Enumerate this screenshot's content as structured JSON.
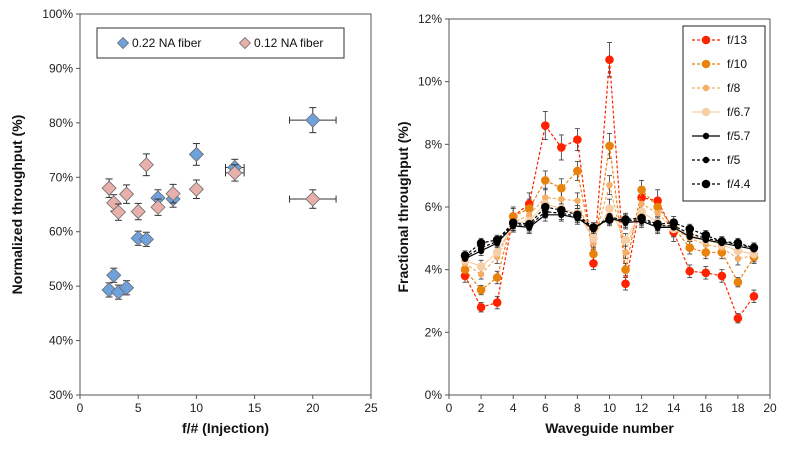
{
  "chart_data": [
    {
      "type": "scatter",
      "xlabel": "f/#  (Injection)",
      "ylabel": "Normalized throughput (%)",
      "xlim": [
        0,
        25
      ],
      "ylim": [
        30,
        100
      ],
      "x_ticks": [
        0,
        5,
        10,
        15,
        20,
        25
      ],
      "y_ticks": [
        30,
        40,
        50,
        60,
        70,
        80,
        90,
        100
      ],
      "y_tick_labels": [
        "30%",
        "40%",
        "50%",
        "60%",
        "70%",
        "80%",
        "90%",
        "100%"
      ],
      "legend_position": "top",
      "series": [
        {
          "name": "0.22 NA fiber",
          "color": "#6fa1dc",
          "points": [
            {
              "x": 2.5,
              "y": 49.3,
              "yerr": 1.3
            },
            {
              "x": 2.9,
              "y": 52.0,
              "yerr": 1.3
            },
            {
              "x": 3.3,
              "y": 48.9,
              "yerr": 1.3
            },
            {
              "x": 4.0,
              "y": 49.7,
              "yerr": 1.3
            },
            {
              "x": 5.0,
              "y": 58.8,
              "yerr": 1.3
            },
            {
              "x": 5.7,
              "y": 58.6,
              "yerr": 1.3
            },
            {
              "x": 6.7,
              "y": 66.2,
              "yerr": 1.5
            },
            {
              "x": 8.0,
              "y": 66.0,
              "yerr": 1.5
            },
            {
              "x": 10.0,
              "y": 74.2,
              "yerr": 2.0,
              "xerr": 0.2
            },
            {
              "x": 13.3,
              "y": 71.8,
              "yerr": 1.5,
              "xerr": 0.8
            },
            {
              "x": 20.0,
              "y": 80.5,
              "yerr": 2.3,
              "xerr": 2.0
            }
          ]
        },
        {
          "name": "0.12 NA fiber",
          "color": "#e8b0ab",
          "points": [
            {
              "x": 2.5,
              "y": 68.0,
              "yerr": 1.7
            },
            {
              "x": 2.9,
              "y": 65.3,
              "yerr": 1.5
            },
            {
              "x": 3.3,
              "y": 63.6,
              "yerr": 1.5
            },
            {
              "x": 4.0,
              "y": 66.9,
              "yerr": 1.7
            },
            {
              "x": 5.0,
              "y": 63.7,
              "yerr": 1.5
            },
            {
              "x": 5.7,
              "y": 72.3,
              "yerr": 2.0
            },
            {
              "x": 6.7,
              "y": 64.5,
              "yerr": 1.5
            },
            {
              "x": 8.0,
              "y": 67.0,
              "yerr": 1.7
            },
            {
              "x": 10.0,
              "y": 67.8,
              "yerr": 1.7
            },
            {
              "x": 13.3,
              "y": 70.8,
              "yerr": 1.5,
              "xerr": 0.8
            },
            {
              "x": 20.0,
              "y": 66.0,
              "yerr": 1.7,
              "xerr": 2.0
            }
          ]
        }
      ]
    },
    {
      "type": "line",
      "xlabel": "Waveguide number",
      "ylabel": "Fractional throughput (%)",
      "xlim": [
        0,
        20
      ],
      "ylim": [
        0,
        12
      ],
      "x_ticks": [
        0,
        2,
        4,
        6,
        8,
        10,
        12,
        14,
        16,
        18,
        20
      ],
      "y_ticks": [
        0,
        2,
        4,
        6,
        8,
        10,
        12
      ],
      "y_tick_labels": [
        "0%",
        "2%",
        "4%",
        "6%",
        "8%",
        "10%",
        "12%"
      ],
      "legend_position": "top-right",
      "x": [
        1,
        2,
        3,
        4,
        5,
        6,
        7,
        8,
        9,
        10,
        11,
        12,
        13,
        14,
        15,
        16,
        17,
        18,
        19
      ],
      "series": [
        {
          "name": "f/13",
          "color": "#ff2200",
          "dashed": true,
          "marker_size": "large",
          "values": [
            3.8,
            2.8,
            2.95,
            5.7,
            6.1,
            8.6,
            7.9,
            8.15,
            4.2,
            10.7,
            3.55,
            6.3,
            6.2,
            5.2,
            3.95,
            3.9,
            3.8,
            2.45,
            3.15
          ],
          "yerr": [
            0.2,
            0.15,
            0.2,
            0.3,
            0.35,
            0.45,
            0.4,
            0.35,
            0.2,
            0.55,
            0.2,
            0.35,
            0.35,
            0.3,
            0.2,
            0.2,
            0.2,
            0.15,
            0.2
          ]
        },
        {
          "name": "f/10",
          "color": "#e8820c",
          "dashed": true,
          "marker_size": "large",
          "values": [
            4.0,
            3.35,
            3.75,
            5.7,
            5.95,
            6.85,
            6.6,
            7.15,
            4.5,
            7.95,
            4.0,
            6.55,
            6.0,
            5.35,
            4.7,
            4.55,
            4.55,
            3.6,
            4.4
          ],
          "yerr": [
            0.2,
            0.15,
            0.2,
            0.25,
            0.3,
            0.3,
            0.3,
            0.3,
            0.2,
            0.4,
            0.2,
            0.3,
            0.3,
            0.25,
            0.2,
            0.2,
            0.2,
            0.15,
            0.2
          ]
        },
        {
          "name": "f/8",
          "color": "#f5ae66",
          "dashed": true,
          "marker_size": "small",
          "values": [
            4.2,
            3.85,
            4.4,
            5.5,
            5.75,
            6.3,
            6.25,
            6.2,
            4.85,
            6.7,
            4.55,
            6.1,
            5.8,
            5.3,
            5.0,
            4.8,
            4.7,
            4.35,
            4.45
          ],
          "yerr": [
            0.2,
            0.15,
            0.2,
            0.25,
            0.25,
            0.3,
            0.3,
            0.25,
            0.2,
            0.3,
            0.2,
            0.3,
            0.25,
            0.25,
            0.2,
            0.2,
            0.2,
            0.2,
            0.2
          ]
        },
        {
          "name": "f/6.7",
          "color": "#f6cfa8",
          "dashed": false,
          "marker_size": "large",
          "values": [
            4.3,
            4.1,
            4.55,
            5.45,
            5.55,
            6.1,
            5.95,
            5.8,
            5.0,
            5.95,
            4.95,
            5.85,
            5.5,
            5.3,
            5.1,
            4.95,
            4.8,
            4.6,
            4.5
          ],
          "yerr": [
            0.2,
            0.2,
            0.2,
            0.25,
            0.25,
            0.25,
            0.25,
            0.25,
            0.2,
            0.3,
            0.2,
            0.25,
            0.25,
            0.25,
            0.2,
            0.2,
            0.2,
            0.2,
            0.2
          ]
        },
        {
          "name": "f/5.7",
          "color": "#000000",
          "dashed": false,
          "marker_size": "small",
          "values": [
            4.35,
            4.6,
            4.85,
            5.4,
            5.35,
            5.75,
            5.75,
            5.65,
            5.3,
            5.65,
            5.5,
            5.55,
            5.35,
            5.35,
            5.05,
            4.95,
            4.85,
            4.75,
            4.65
          ],
          "yerr": [
            0.15,
            0.15,
            0.15,
            0.2,
            0.2,
            0.2,
            0.2,
            0.2,
            0.15,
            0.2,
            0.2,
            0.2,
            0.2,
            0.2,
            0.15,
            0.15,
            0.15,
            0.15,
            0.15
          ]
        },
        {
          "name": "f/5",
          "color": "#000000",
          "dashed": true,
          "marker_size": "small",
          "values": [
            4.4,
            4.7,
            4.9,
            5.45,
            5.4,
            5.85,
            5.8,
            5.7,
            5.3,
            5.7,
            5.55,
            5.6,
            5.4,
            5.4,
            5.15,
            5.0,
            4.9,
            4.8,
            4.7
          ],
          "yerr": [
            0.15,
            0.15,
            0.15,
            0.2,
            0.2,
            0.2,
            0.2,
            0.2,
            0.15,
            0.2,
            0.2,
            0.2,
            0.2,
            0.2,
            0.15,
            0.15,
            0.15,
            0.15,
            0.15
          ]
        },
        {
          "name": "f/4.4",
          "color": "#000000",
          "dashed": true,
          "marker_size": "large",
          "values": [
            4.45,
            4.85,
            4.95,
            5.5,
            5.45,
            6.0,
            5.9,
            5.75,
            5.35,
            5.6,
            5.6,
            5.65,
            5.45,
            5.5,
            5.3,
            5.1,
            4.9,
            4.85,
            4.7
          ],
          "yerr": [
            0.15,
            0.15,
            0.15,
            0.2,
            0.2,
            0.2,
            0.2,
            0.2,
            0.15,
            0.2,
            0.2,
            0.2,
            0.2,
            0.2,
            0.15,
            0.15,
            0.15,
            0.15,
            0.15
          ]
        }
      ]
    }
  ]
}
